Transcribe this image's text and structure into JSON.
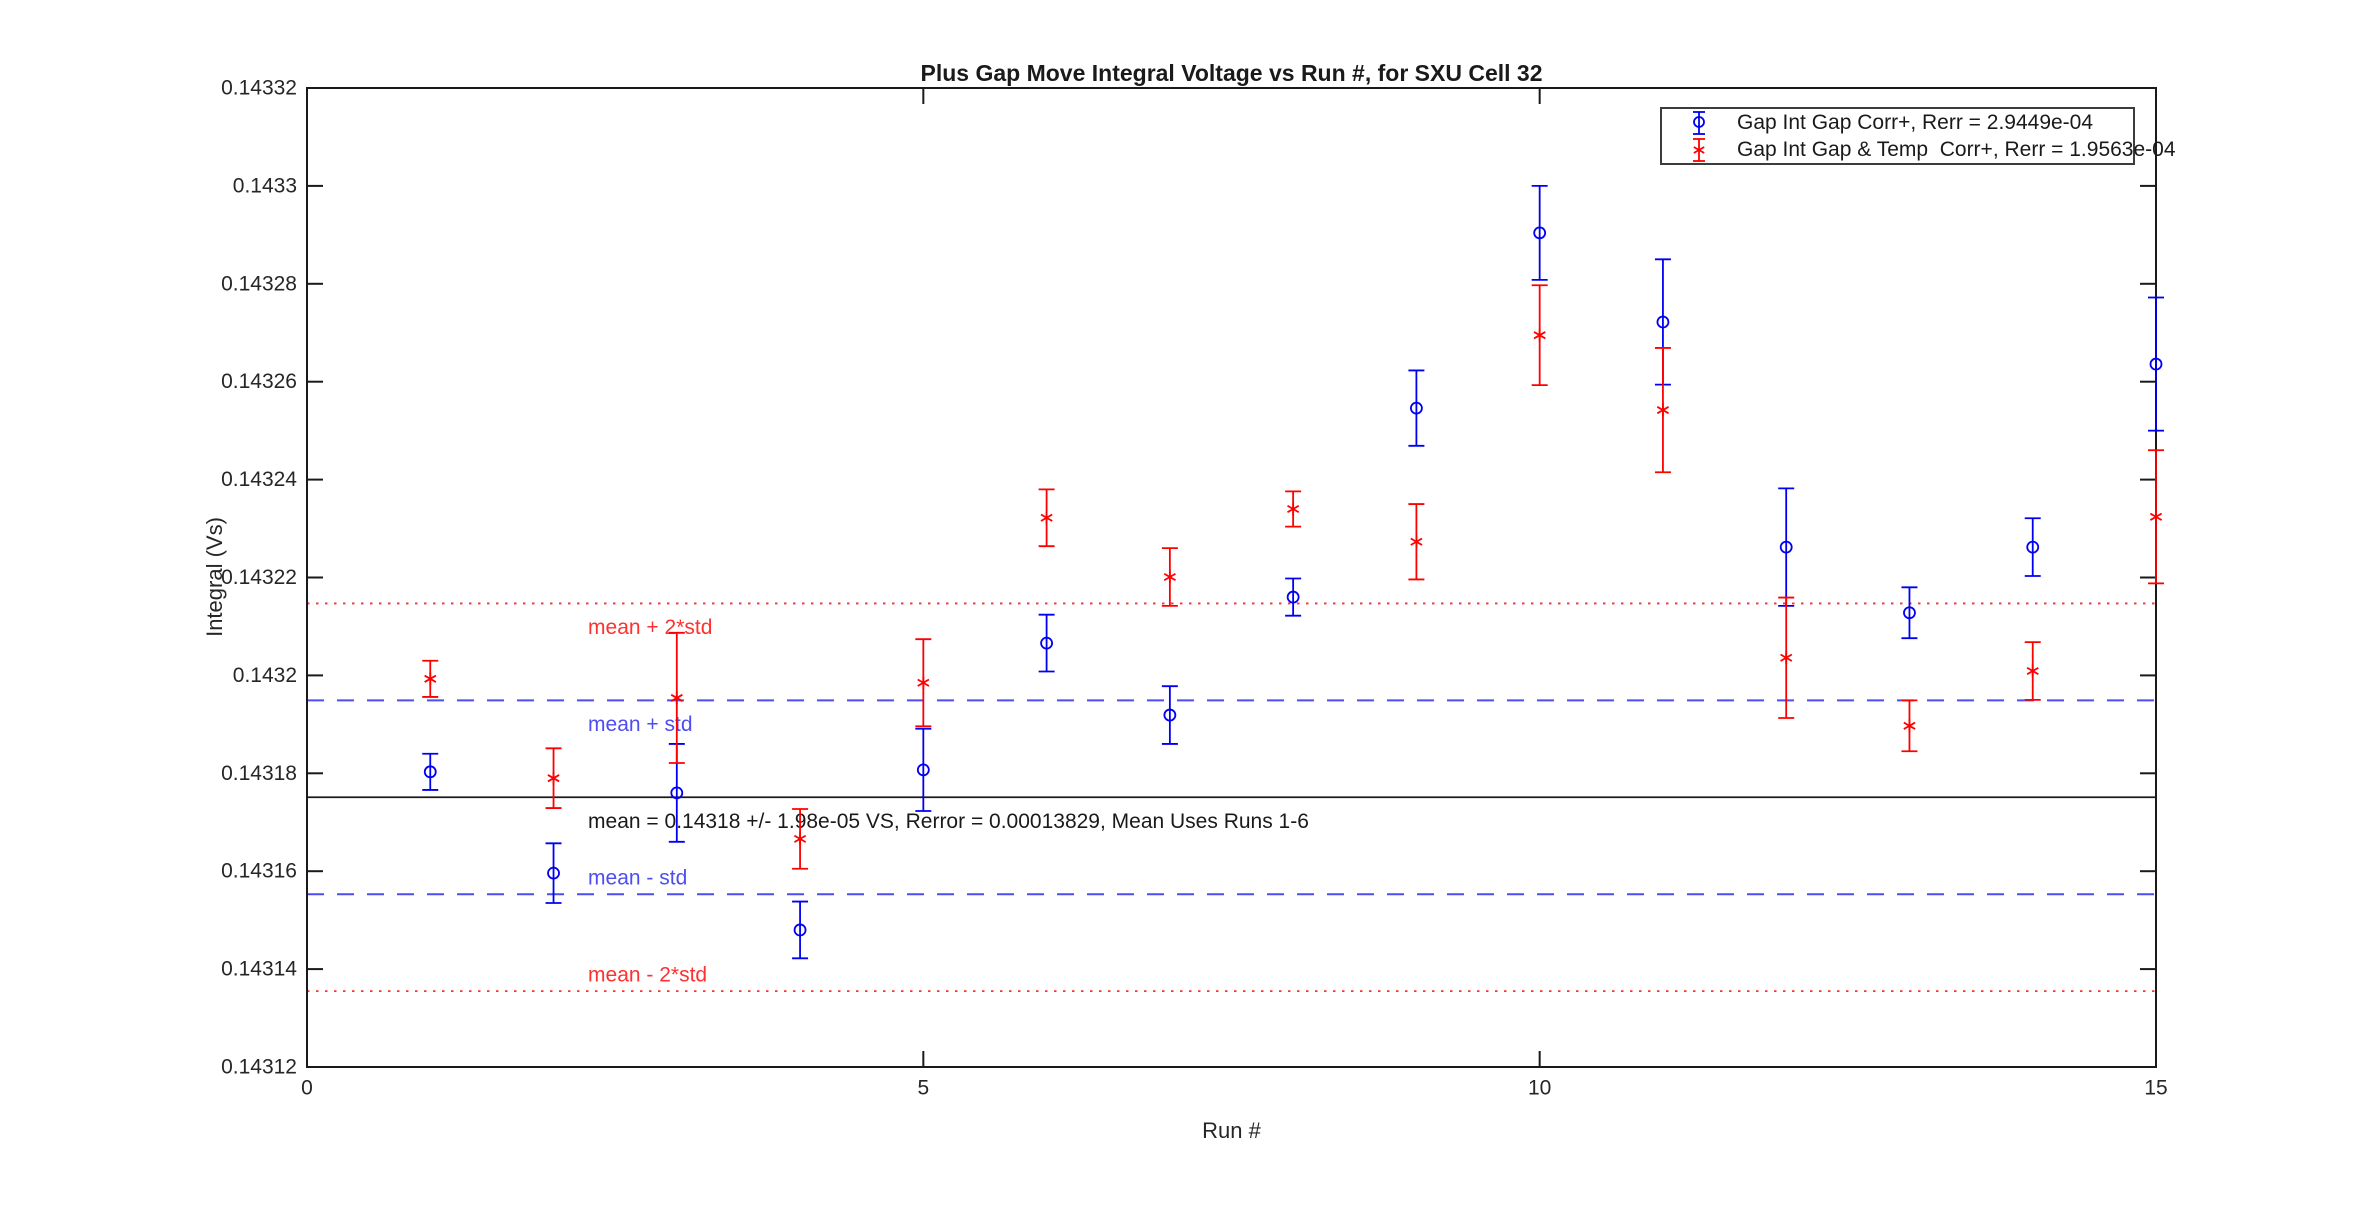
{
  "title": "Plus Gap Move Integral Voltage vs Run #, for SXU Cell 32",
  "chart_data": {
    "type": "scatter",
    "subtype": "errorbar",
    "xlabel": "Run #",
    "ylabel": "Integral (Vs)",
    "xlim": [
      0,
      15
    ],
    "ylim": [
      0.14312,
      0.14332
    ],
    "grid": false,
    "legend_position": "top-right",
    "xticks": [
      0,
      5,
      10,
      15
    ],
    "xtick_labels": [
      "0",
      "5",
      "10",
      "15"
    ],
    "yticks": [
      0.14312,
      0.14314,
      0.14316,
      0.14318,
      0.1432,
      0.14322,
      0.14324,
      0.14326,
      0.14328,
      0.1433,
      0.14332
    ],
    "ytick_labels": [
      "0.14312",
      "0.14314",
      "0.14316",
      "0.14318",
      "0.1432",
      "0.14322",
      "0.14324",
      "0.14326",
      "0.14328",
      "0.1433",
      "0.14332"
    ],
    "colors": {
      "background": "#ffffff",
      "axis": "#1a1a1a",
      "tick_label": "#262626",
      "series_blue": "#0000f2",
      "series_red": "#ff0000",
      "dashed_blue": "#4d4df0",
      "dotted_red": "#ff3030"
    },
    "series": [
      {
        "name": "Gap Int Gap Corr+, Rerr = 2.9449e-04",
        "marker": "circle",
        "color": "#0000f2",
        "x": [
          1,
          2,
          3,
          4,
          5,
          6,
          7,
          8,
          9,
          10,
          11,
          12,
          13,
          14,
          15
        ],
        "y": [
          0.1431803,
          0.1431596,
          0.143176,
          0.143148,
          0.1431807,
          0.1432066,
          0.1431919,
          0.143216,
          0.1432546,
          0.1432904,
          0.1432722,
          0.1432262,
          0.1432128,
          0.1432262,
          0.1432636
        ],
        "yerr": [
          3.7e-06,
          6.1e-06,
          1e-05,
          5.8e-06,
          8.4e-06,
          5.8e-06,
          5.9e-06,
          3.8e-06,
          7.7e-06,
          9.6e-06,
          1.28e-05,
          1.2e-05,
          5.2e-06,
          5.9e-06,
          1.36e-05
        ]
      },
      {
        "name": "Gap Int Gap & Temp  Corr+, Rerr = 1.9563e-04",
        "marker": "asterisk",
        "color": "#ff0000",
        "x": [
          1,
          2,
          3,
          4,
          5,
          6,
          7,
          8,
          9,
          10,
          11,
          12,
          13,
          14,
          15
        ],
        "y": [
          0.1431993,
          0.143179,
          0.1431954,
          0.1431666,
          0.1431985,
          0.1432322,
          0.1432201,
          0.143234,
          0.1432273,
          0.1432695,
          0.1432542,
          0.1432036,
          0.1431897,
          0.1432009,
          0.1432324
        ],
        "yerr": [
          3.7e-06,
          6.1e-06,
          1.33e-05,
          6.1e-06,
          8.9e-06,
          5.8e-06,
          5.9e-06,
          3.6e-06,
          7.7e-06,
          1.02e-05,
          1.27e-05,
          1.23e-05,
          5.2e-06,
          5.9e-06,
          1.36e-05
        ]
      }
    ],
    "statistics": {
      "mean": 0.1431751,
      "std": 1.98e-05,
      "mean_display": "0.14318",
      "std_display": "1.98e-05",
      "rerror_display": "0.00013829",
      "mean_uses_runs": "1-6"
    },
    "reference_lines": [
      {
        "label": "mean + 2*std",
        "value": 0.1432147,
        "style": "dotted",
        "color": "#ff3030",
        "label_x": 2.28,
        "label_below": true
      },
      {
        "label": "mean + std",
        "value": 0.1431949,
        "style": "dashed",
        "color": "#4d4df0",
        "label_x": 2.28,
        "label_below": true
      },
      {
        "label": "mean = 0.14318 +/- 1.98e-05 VS, Rerror = 0.00013829, Mean Uses Runs 1-6",
        "value": 0.1431751,
        "style": "solid",
        "color": "#1a1a1a",
        "label_x": 2.28,
        "label_below": true
      },
      {
        "label": "mean - std",
        "value": 0.1431553,
        "style": "dashed",
        "color": "#4d4df0",
        "label_x": 2.28,
        "label_below": false
      },
      {
        "label": "mean - 2*std",
        "value": 0.1431355,
        "style": "dotted",
        "color": "#ff3030",
        "label_x": 2.28,
        "label_below": false
      }
    ]
  }
}
